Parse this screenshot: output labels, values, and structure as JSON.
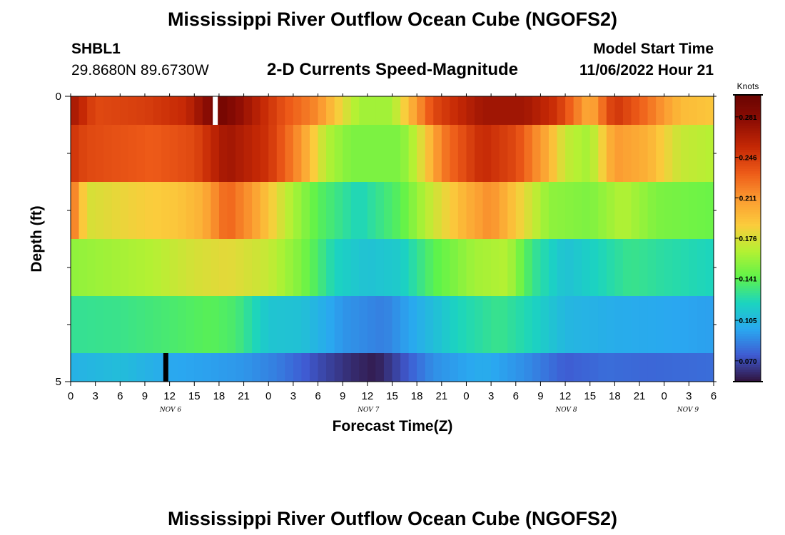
{
  "header": {
    "title": "Mississippi River Outflow Ocean Cube (NGOFS2)",
    "station": "SHBL1",
    "coords": "29.8680N  89.6730W",
    "subtitle": "2-D Currents Speed-Magnitude",
    "model_start_label": "Model Start Time",
    "model_start_value": "11/06/2022 Hour 21"
  },
  "footer": {
    "title": "Mississippi River Outflow Ocean Cube (NGOFS2)"
  },
  "chart_data": {
    "type": "heatmap",
    "xlabel": "Forecast Time(Z)",
    "ylabel": "Depth (ft)",
    "x_tick_labels": [
      "0",
      "3",
      "6",
      "9",
      "12",
      "15",
      "18",
      "21",
      "0",
      "3",
      "6",
      "9",
      "12",
      "15",
      "18",
      "21",
      "0",
      "3",
      "6",
      "9",
      "12",
      "15",
      "18",
      "21",
      "0",
      "3",
      "6"
    ],
    "day_labels": [
      "NOV 6",
      "NOV 7",
      "NOV 8",
      "NOV 9"
    ],
    "day_label_hours": [
      0,
      24,
      48,
      72
    ],
    "y_tick_labels": [
      "0",
      "5"
    ],
    "xlim_hours": [
      0,
      78
    ],
    "ylim_ft": [
      0,
      5
    ],
    "band_bounds_ft": [
      0,
      0.5,
      1.5,
      2.5,
      3.5,
      4.5,
      5
    ],
    "colorbar": {
      "unit": "Knots",
      "ticks": [
        "0.281",
        "0.246",
        "0.211",
        "0.176",
        "0.141",
        "0.105",
        "0.070"
      ],
      "tick_values": [
        0.281,
        0.246,
        0.211,
        0.176,
        0.141,
        0.105,
        0.07
      ],
      "range": [
        0.052,
        0.3
      ],
      "colors": [
        "#30123b",
        "#3f5bd2",
        "#2aa7f0",
        "#1bd4c0",
        "#5ff34a",
        "#b4f133",
        "#fbcc3c",
        "#fb9b31",
        "#ed5a18",
        "#c52805",
        "#8d0d04",
        "#6a0401"
      ]
    },
    "gap_markers": [
      {
        "band": 0,
        "hour": 17.5,
        "color": "#ffffff"
      },
      {
        "band": 5,
        "hour": 11.5,
        "color": "#000000"
      }
    ],
    "band_keypoints": [
      [
        [
          0,
          0.27
        ],
        [
          3,
          0.24
        ],
        [
          9,
          0.245
        ],
        [
          14,
          0.255
        ],
        [
          18,
          0.295
        ],
        [
          22,
          0.265
        ],
        [
          26,
          0.235
        ],
        [
          30,
          0.215
        ],
        [
          33,
          0.18
        ],
        [
          35,
          0.16
        ],
        [
          39,
          0.16
        ],
        [
          41,
          0.195
        ],
        [
          44,
          0.24
        ],
        [
          50,
          0.27
        ],
        [
          55,
          0.27
        ],
        [
          59,
          0.25
        ],
        [
          63,
          0.2
        ],
        [
          66,
          0.25
        ],
        [
          70,
          0.225
        ],
        [
          74,
          0.195
        ],
        [
          78,
          0.19
        ]
      ],
      [
        [
          0,
          0.25
        ],
        [
          2,
          0.24
        ],
        [
          10,
          0.232
        ],
        [
          15,
          0.24
        ],
        [
          19,
          0.27
        ],
        [
          24,
          0.25
        ],
        [
          28,
          0.21
        ],
        [
          31,
          0.165
        ],
        [
          34,
          0.15
        ],
        [
          40,
          0.15
        ],
        [
          42,
          0.17
        ],
        [
          45,
          0.22
        ],
        [
          50,
          0.255
        ],
        [
          54,
          0.24
        ],
        [
          58,
          0.2
        ],
        [
          60,
          0.17
        ],
        [
          63,
          0.16
        ],
        [
          66,
          0.21
        ],
        [
          70,
          0.2
        ],
        [
          74,
          0.17
        ],
        [
          78,
          0.165
        ]
      ],
      [
        [
          0,
          0.23
        ],
        [
          2,
          0.175
        ],
        [
          8,
          0.185
        ],
        [
          13,
          0.19
        ],
        [
          16,
          0.2
        ],
        [
          19,
          0.23
        ],
        [
          22,
          0.21
        ],
        [
          26,
          0.17
        ],
        [
          30,
          0.14
        ],
        [
          35,
          0.12
        ],
        [
          40,
          0.14
        ],
        [
          43,
          0.165
        ],
        [
          48,
          0.2
        ],
        [
          51,
          0.215
        ],
        [
          55,
          0.18
        ],
        [
          58,
          0.155
        ],
        [
          63,
          0.15
        ],
        [
          67,
          0.165
        ],
        [
          71,
          0.15
        ],
        [
          78,
          0.145
        ]
      ],
      [
        [
          0,
          0.155
        ],
        [
          5,
          0.16
        ],
        [
          10,
          0.165
        ],
        [
          15,
          0.175
        ],
        [
          19,
          0.18
        ],
        [
          24,
          0.17
        ],
        [
          28,
          0.15
        ],
        [
          32,
          0.12
        ],
        [
          36,
          0.11
        ],
        [
          40,
          0.115
        ],
        [
          44,
          0.14
        ],
        [
          49,
          0.16
        ],
        [
          53,
          0.165
        ],
        [
          56,
          0.13
        ],
        [
          60,
          0.11
        ],
        [
          64,
          0.12
        ],
        [
          68,
          0.13
        ],
        [
          72,
          0.125
        ],
        [
          78,
          0.12
        ]
      ],
      [
        [
          0,
          0.128
        ],
        [
          6,
          0.13
        ],
        [
          12,
          0.135
        ],
        [
          17,
          0.14
        ],
        [
          20,
          0.135
        ],
        [
          24,
          0.112
        ],
        [
          28,
          0.11
        ],
        [
          33,
          0.092
        ],
        [
          38,
          0.085
        ],
        [
          42,
          0.1
        ],
        [
          47,
          0.12
        ],
        [
          52,
          0.13
        ],
        [
          56,
          0.12
        ],
        [
          60,
          0.105
        ],
        [
          66,
          0.1
        ],
        [
          72,
          0.098
        ],
        [
          78,
          0.095
        ]
      ],
      [
        [
          0,
          0.102
        ],
        [
          6,
          0.108
        ],
        [
          12,
          0.098
        ],
        [
          17,
          0.095
        ],
        [
          21,
          0.092
        ],
        [
          25,
          0.085
        ],
        [
          30,
          0.07
        ],
        [
          34,
          0.06
        ],
        [
          37,
          0.055
        ],
        [
          40,
          0.07
        ],
        [
          44,
          0.09
        ],
        [
          50,
          0.1
        ],
        [
          55,
          0.09
        ],
        [
          60,
          0.075
        ],
        [
          65,
          0.08
        ],
        [
          70,
          0.078
        ],
        [
          78,
          0.08
        ]
      ]
    ]
  }
}
